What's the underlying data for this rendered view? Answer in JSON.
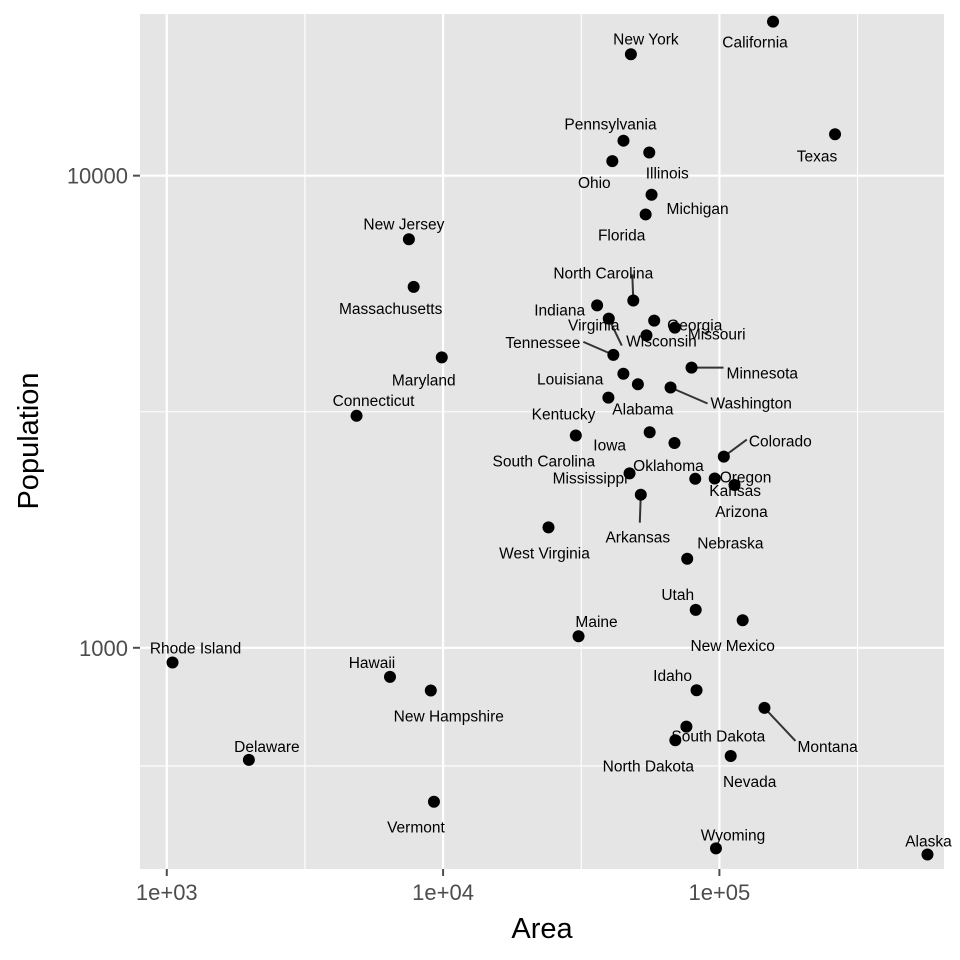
{
  "chart_data": {
    "type": "scatter",
    "xlabel": "Area",
    "ylabel": "Population",
    "x_scale": "log10",
    "y_scale": "log10",
    "xlim": [
      800,
      650000
    ],
    "ylim": [
      340,
      22000
    ],
    "x_ticks": [
      1000,
      10000,
      100000
    ],
    "x_tick_labels": [
      "1e+03",
      "1e+04",
      "1e+05"
    ],
    "y_ticks": [
      1000,
      10000
    ],
    "y_tick_labels": [
      "1000",
      "10000"
    ],
    "x_minor_ticks": [
      3162,
      31623,
      316228
    ],
    "y_minor_ticks": [
      562,
      3162
    ],
    "grid": true,
    "colors": {
      "panel": "#e5e5e5",
      "grid": "#ffffff",
      "point": "#000000",
      "axis_text": "#4d4d4d",
      "leader": "#333333"
    },
    "points": [
      {
        "label": "Alabama",
        "x": 50708,
        "y": 3615
      },
      {
        "label": "Alaska",
        "x": 566432,
        "y": 365
      },
      {
        "label": "Arizona",
        "x": 113417,
        "y": 2212
      },
      {
        "label": "Arkansas",
        "x": 51945,
        "y": 2110
      },
      {
        "label": "California",
        "x": 156361,
        "y": 21198
      },
      {
        "label": "Colorado",
        "x": 103766,
        "y": 2541
      },
      {
        "label": "Connecticut",
        "x": 4862,
        "y": 3100
      },
      {
        "label": "Delaware",
        "x": 1982,
        "y": 579
      },
      {
        "label": "Florida",
        "x": 54090,
        "y": 8277
      },
      {
        "label": "Georgia",
        "x": 58073,
        "y": 4931
      },
      {
        "label": "Hawaii",
        "x": 6425,
        "y": 868
      },
      {
        "label": "Idaho",
        "x": 82677,
        "y": 813
      },
      {
        "label": "Illinois",
        "x": 55748,
        "y": 11197
      },
      {
        "label": "Indiana",
        "x": 36097,
        "y": 5313
      },
      {
        "label": "Iowa",
        "x": 55941,
        "y": 2861
      },
      {
        "label": "Kansas",
        "x": 81787,
        "y": 2280
      },
      {
        "label": "Kentucky",
        "x": 39650,
        "y": 3387
      },
      {
        "label": "Louisiana",
        "x": 44930,
        "y": 3806
      },
      {
        "label": "Maine",
        "x": 30920,
        "y": 1058
      },
      {
        "label": "Maryland",
        "x": 9891,
        "y": 4122
      },
      {
        "label": "Massachusetts",
        "x": 7826,
        "y": 5814
      },
      {
        "label": "Michigan",
        "x": 56817,
        "y": 9111
      },
      {
        "label": "Minnesota",
        "x": 79289,
        "y": 3921
      },
      {
        "label": "Mississippi",
        "x": 47296,
        "y": 2341
      },
      {
        "label": "Missouri",
        "x": 68995,
        "y": 4767
      },
      {
        "label": "Montana",
        "x": 145587,
        "y": 746
      },
      {
        "label": "Nebraska",
        "x": 76483,
        "y": 1544
      },
      {
        "label": "Nevada",
        "x": 109889,
        "y": 590
      },
      {
        "label": "New Hampshire",
        "x": 9027,
        "y": 812
      },
      {
        "label": "New Jersey",
        "x": 7521,
        "y": 7333
      },
      {
        "label": "New Mexico",
        "x": 121412,
        "y": 1144
      },
      {
        "label": "New York",
        "x": 47831,
        "y": 18076
      },
      {
        "label": "North Carolina",
        "x": 48798,
        "y": 5441
      },
      {
        "label": "North Dakota",
        "x": 69273,
        "y": 637
      },
      {
        "label": "Ohio",
        "x": 40975,
        "y": 10735
      },
      {
        "label": "Oklahoma",
        "x": 68782,
        "y": 2715
      },
      {
        "label": "Oregon",
        "x": 96184,
        "y": 2284
      },
      {
        "label": "Pennsylvania",
        "x": 44966,
        "y": 11860
      },
      {
        "label": "Rhode Island",
        "x": 1049,
        "y": 931
      },
      {
        "label": "South Carolina",
        "x": 30225,
        "y": 2816
      },
      {
        "label": "South Dakota",
        "x": 75955,
        "y": 681
      },
      {
        "label": "Tennessee",
        "x": 41328,
        "y": 4173
      },
      {
        "label": "Texas",
        "x": 262134,
        "y": 12237
      },
      {
        "label": "Utah",
        "x": 82096,
        "y": 1203
      },
      {
        "label": "Vermont",
        "x": 9267,
        "y": 472
      },
      {
        "label": "Virginia",
        "x": 39780,
        "y": 4981
      },
      {
        "label": "Washington",
        "x": 66570,
        "y": 3559
      },
      {
        "label": "West Virginia",
        "x": 24070,
        "y": 1799
      },
      {
        "label": "Wisconsin",
        "x": 54464,
        "y": 4589
      },
      {
        "label": "Wyoming",
        "x": 97203,
        "y": 376
      }
    ]
  }
}
